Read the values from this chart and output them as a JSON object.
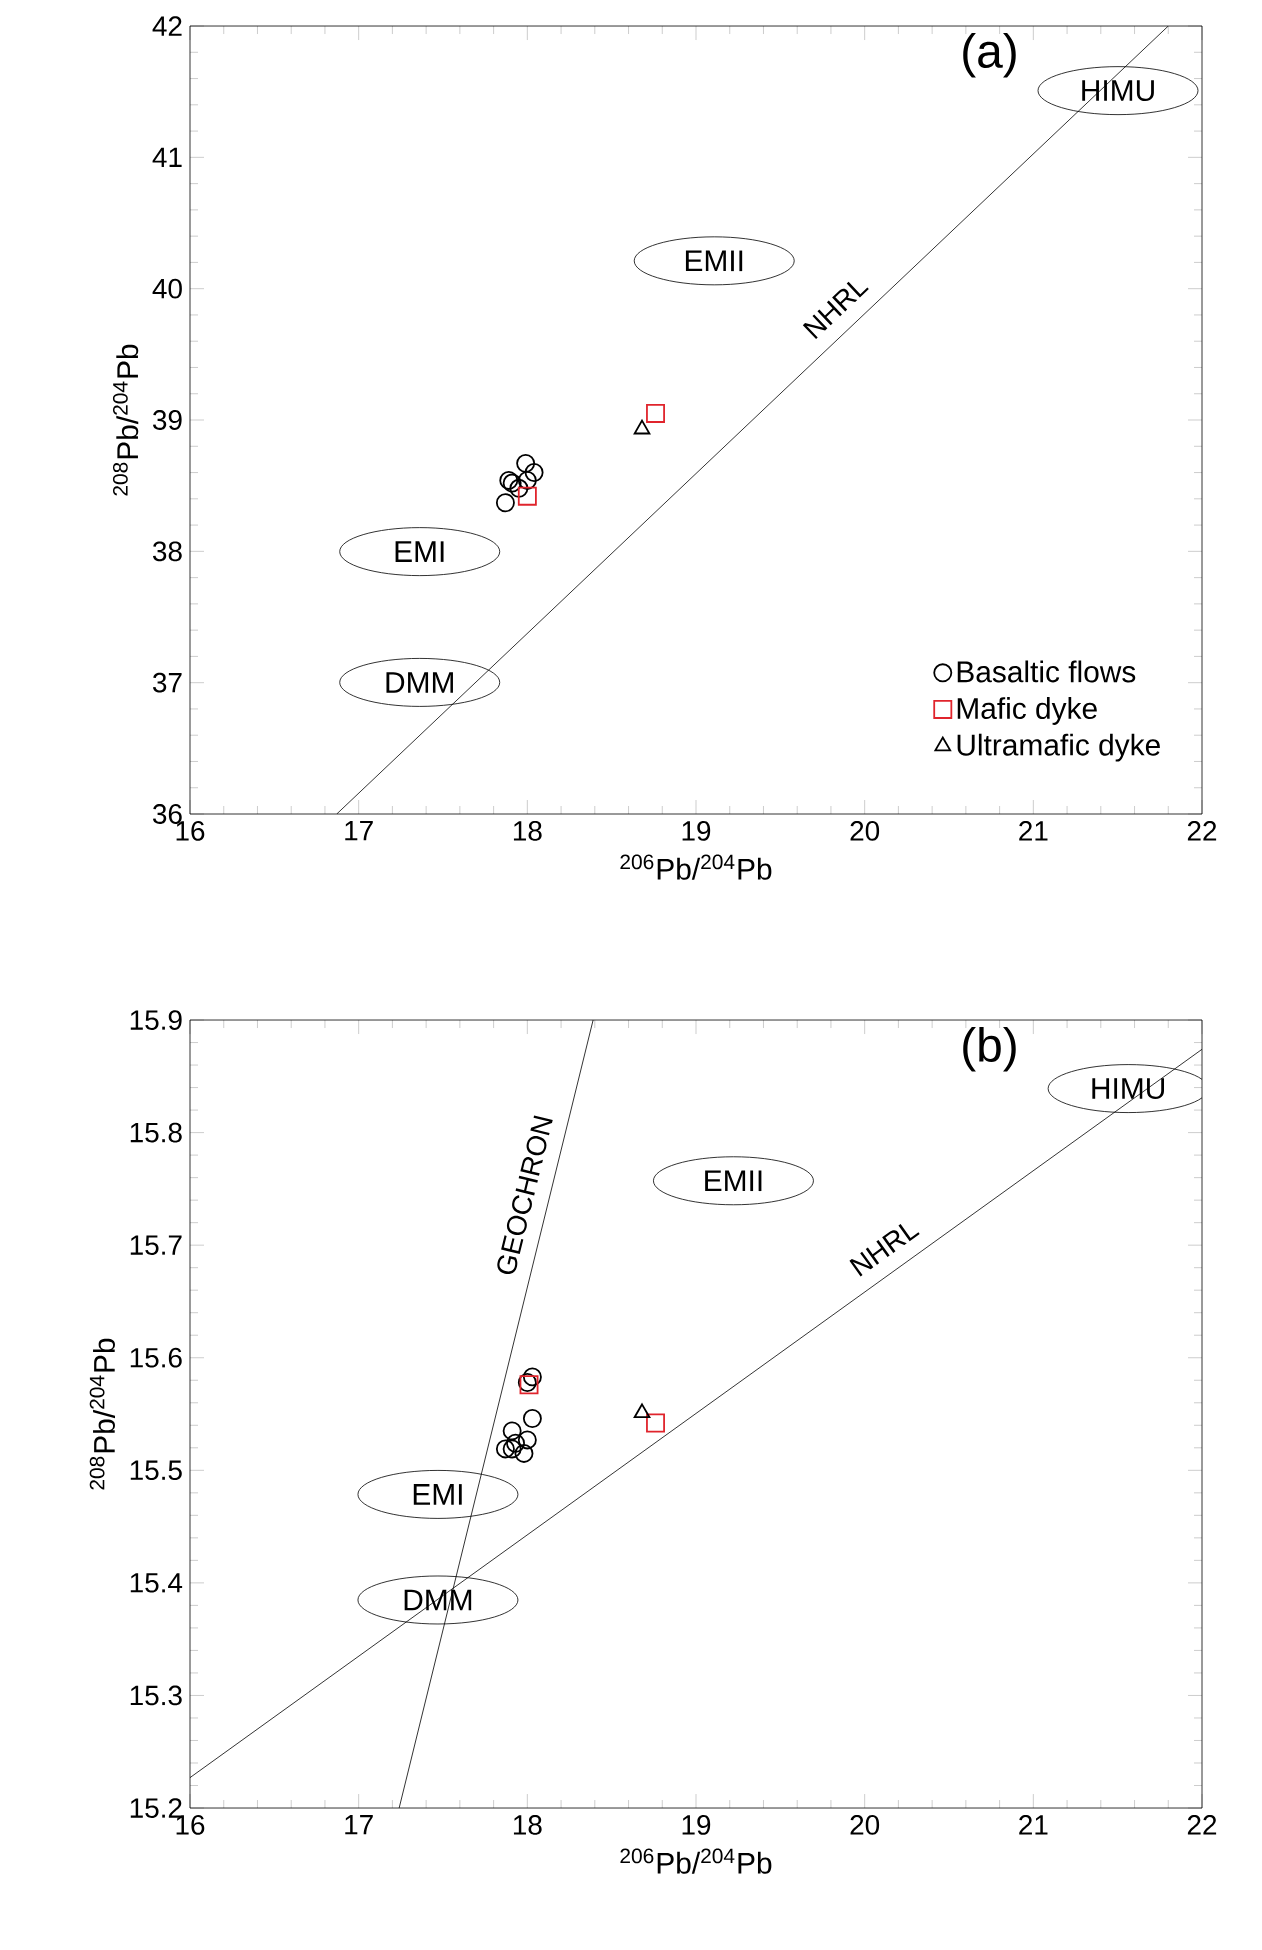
{
  "chart_data": [
    {
      "type": "scatter",
      "title": "(a)",
      "xlabel": "$^{206}$Pb/$^{204}$Pb",
      "ylabel": "$^{208}$Pb/$^{204}$Pb",
      "xlim": [
        16,
        22
      ],
      "ylim": [
        36,
        42
      ],
      "xticks": [
        16,
        17,
        18,
        19,
        20,
        21,
        22
      ],
      "yticks": [
        36,
        37,
        38,
        39,
        40,
        41,
        42
      ],
      "legend": "bottom right",
      "series": [
        {
          "name": "Basaltic flows",
          "marker": "circle",
          "color": "#000000",
          "x": [
            17.99,
            18.04,
            17.91,
            17.87,
            17.95,
            18.0,
            17.89
          ],
          "values": [
            38.67,
            38.6,
            38.52,
            38.37,
            38.48,
            38.54,
            38.54
          ]
        },
        {
          "name": "Mafic dyke",
          "marker": "square",
          "color": "#e0242c",
          "x": [
            18.0,
            18.76
          ],
          "values": [
            38.42,
            39.05
          ]
        },
        {
          "name": "Ultramafic dyke",
          "marker": "triangle",
          "color": "#000000",
          "x": [
            18.68
          ],
          "values": [
            38.93
          ]
        },
        {
          "name": "NHRL",
          "type": "line",
          "color": "#000000",
          "x": [
            16.87,
            21.8
          ],
          "values": [
            36,
            42
          ]
        }
      ],
      "annotations": [
        "HIMU",
        "EMII",
        "EMI",
        "DMM"
      ]
    },
    {
      "type": "scatter",
      "title": "(b)",
      "xlabel": "$^{206}$Pb/$^{204}$Pb",
      "ylabel": "$^{208}$Pb/$^{204}$Pb",
      "xlim": [
        16,
        22
      ],
      "ylim": [
        15.2,
        15.9
      ],
      "xticks": [
        16,
        17,
        18,
        19,
        20,
        21,
        22
      ],
      "yticks": [
        15.2,
        15.3,
        15.4,
        15.5,
        15.6,
        15.7,
        15.8,
        15.9
      ],
      "series": [
        {
          "marker": "circle",
          "color": "#000000",
          "x": [
            18.03,
            18.0,
            18.03,
            17.91,
            17.87,
            17.93,
            17.98,
            18.0,
            17.91
          ],
          "values": [
            15.583,
            15.578,
            15.546,
            15.535,
            15.519,
            15.524,
            15.515,
            15.527,
            15.519
          ]
        },
        {
          "marker": "square",
          "color": "#e0242c",
          "x": [
            18.01,
            18.76
          ],
          "values": [
            15.576,
            15.542
          ]
        },
        {
          "marker": "triangle",
          "color": "#000000",
          "x": [
            18.68
          ],
          "values": [
            15.551
          ]
        },
        {
          "name": "NHRL",
          "type": "line",
          "color": "#000000",
          "x": [
            16,
            22
          ],
          "values": [
            15.227,
            15.874
          ]
        },
        {
          "name": "GEOCHRON",
          "type": "line",
          "color": "#000000",
          "x": [
            17.24,
            18.39
          ],
          "values": [
            15.2,
            15.9
          ]
        }
      ],
      "annotations": [
        "HIMU",
        "EMII",
        "EMI",
        "DMM"
      ]
    }
  ]
}
